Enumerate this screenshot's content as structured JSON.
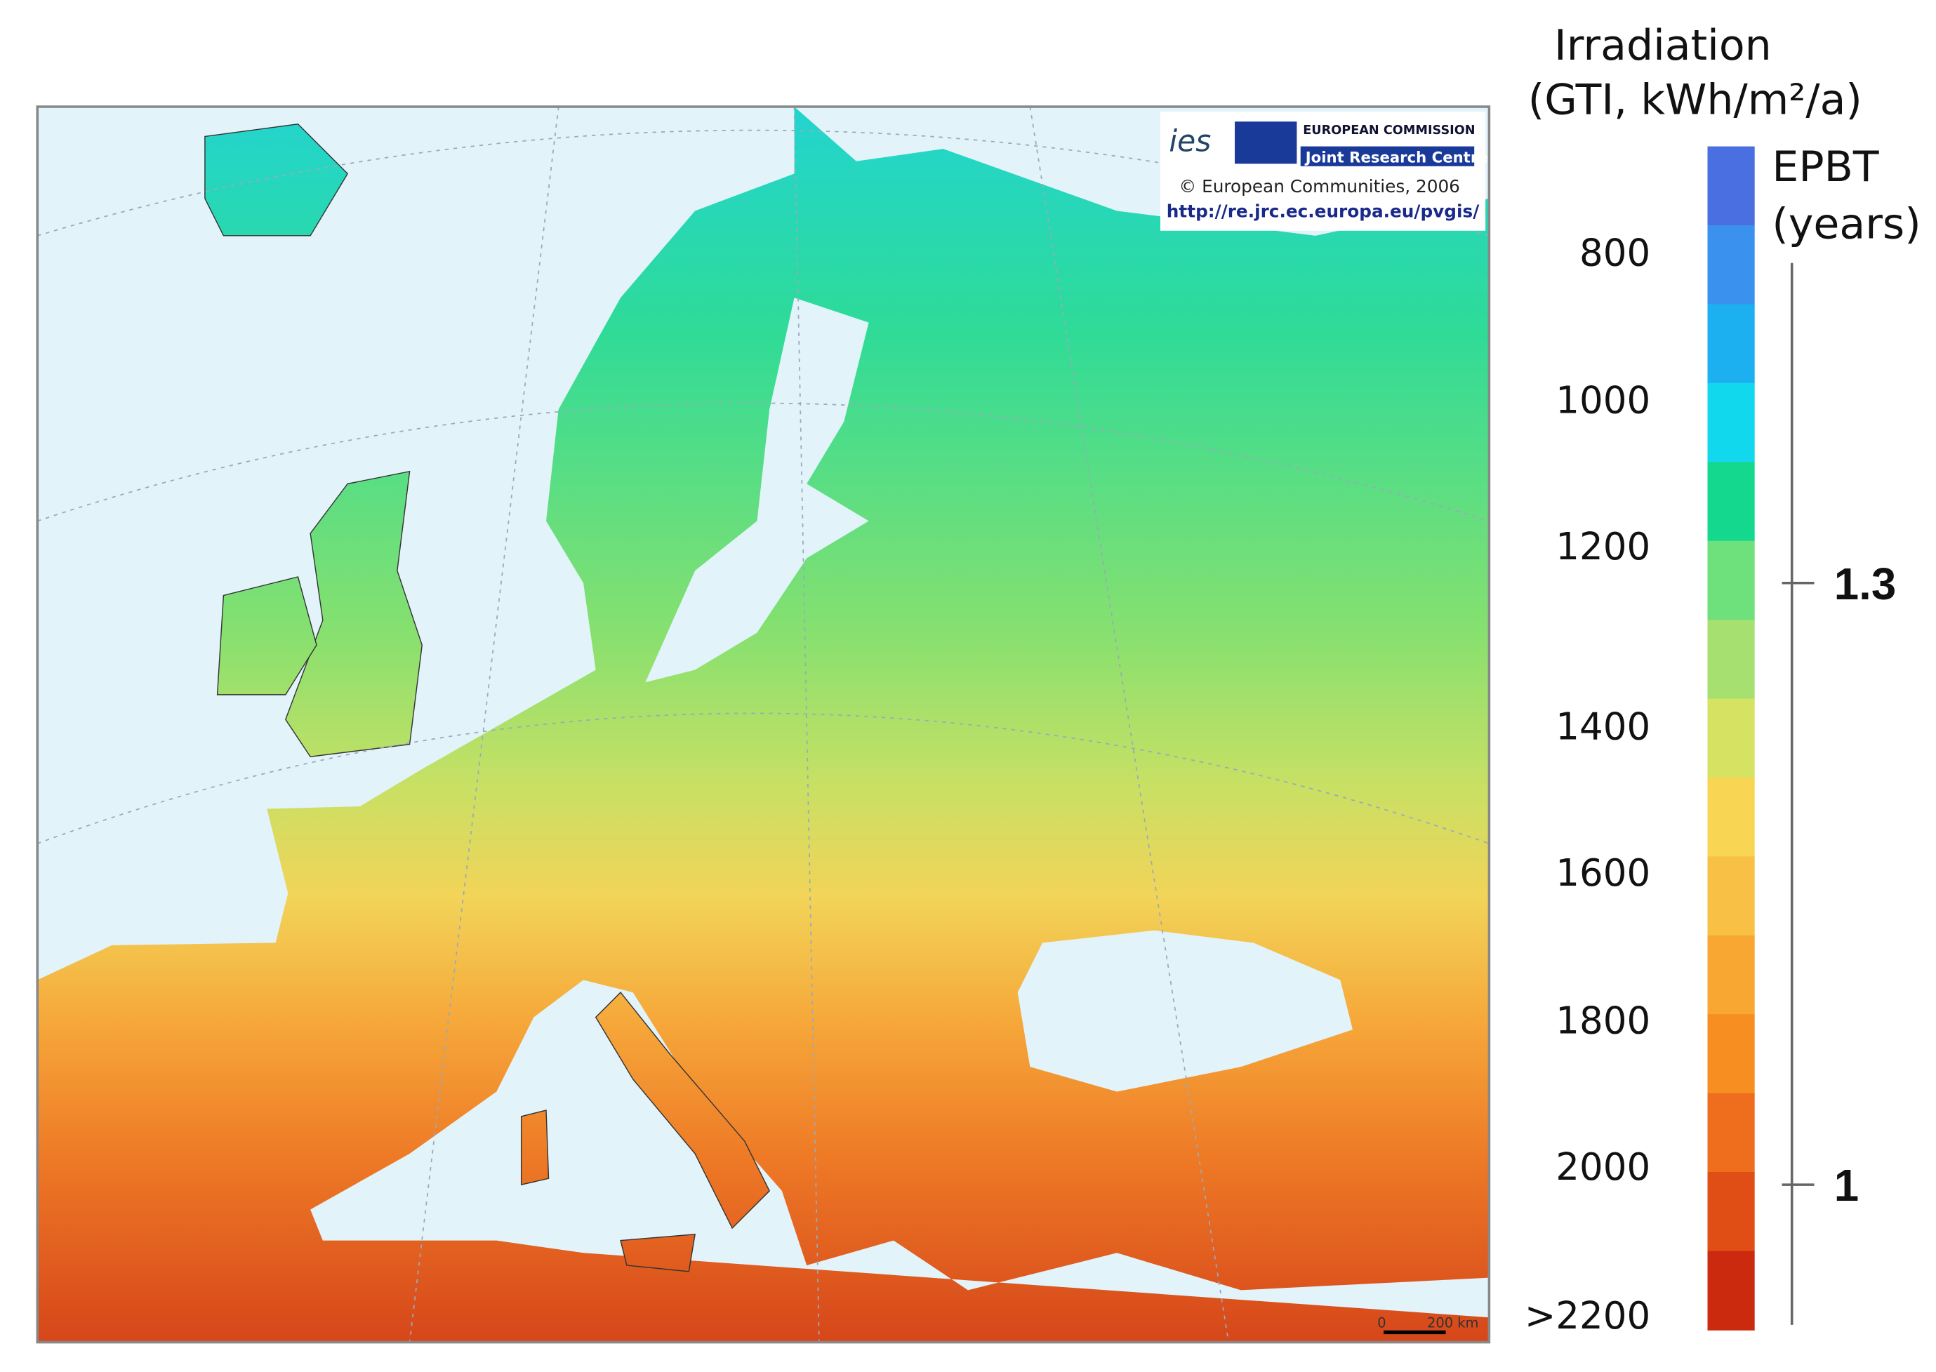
{
  "map": {
    "irradiation_title": [
      "Irradiation",
      "(GTI,  kWh/m²/a)"
    ],
    "legend_labels": [
      800,
      1000,
      1200,
      1400,
      1600,
      1800,
      2000,
      ">2200"
    ],
    "legend_colors": [
      "#4a6fe0",
      "#3a92ee",
      "#1cb0f0",
      "#12d8ee",
      "#14d88e",
      "#6ee07c",
      "#a6e070",
      "#d6e262",
      "#f8d654",
      "#f8c044",
      "#f8a832",
      "#f68e22",
      "#ee6e1e",
      "#e04e16",
      "#cc2a0e"
    ],
    "epbt_title": [
      "EPBT",
      "(years)"
    ],
    "epbt_ticks": [
      1.3,
      1.0
    ],
    "credits": {
      "ies": "ies",
      "commission": "EUROPEAN COMMISSION",
      "jrc": "Joint Research Centre",
      "copyright": "© European Communities, 2006",
      "url": "http://re.jrc.ec.europa.eu/pvgis/"
    },
    "scale_bar": [
      "0",
      "200 km"
    ]
  }
}
